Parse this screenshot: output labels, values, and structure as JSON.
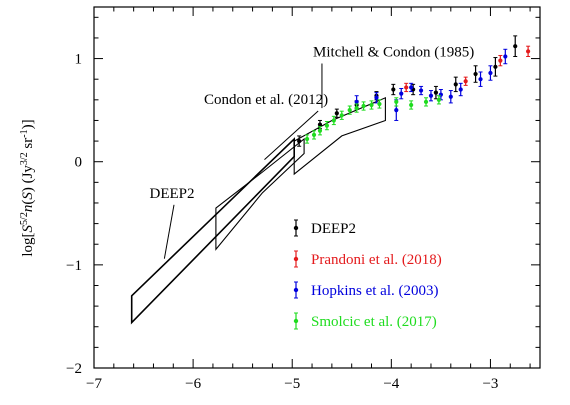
{
  "chart_data": {
    "type": "scatter",
    "title": "",
    "xlabel": "",
    "ylabel": "log[S^{5/2}n(S) (Jy^{3/2} sr^{-1})]",
    "xlim": [
      -7,
      -2.5
    ],
    "ylim": [
      -2,
      1.5
    ],
    "xticks": [
      -7,
      -6,
      -5,
      -4,
      -3
    ],
    "yticks": [
      -2,
      -1,
      0,
      1
    ],
    "xtick_labels": [
      "−7",
      "−6",
      "−5",
      "−4",
      "−3"
    ],
    "ytick_labels": [
      "−2",
      "−1",
      "0",
      "1"
    ],
    "grid": false,
    "legend_position": "lower-right",
    "series": [
      {
        "name": "DEEP2",
        "color": "#000000",
        "points": [
          {
            "x": -4.93,
            "y": 0.2,
            "err": 0.05
          },
          {
            "x": -4.72,
            "y": 0.36,
            "err": 0.04
          },
          {
            "x": -4.55,
            "y": 0.47,
            "err": 0.04
          },
          {
            "x": -4.35,
            "y": 0.55,
            "err": 0.04
          },
          {
            "x": -4.15,
            "y": 0.64,
            "err": 0.04
          },
          {
            "x": -3.98,
            "y": 0.7,
            "err": 0.05
          },
          {
            "x": -3.78,
            "y": 0.7,
            "err": 0.05
          },
          {
            "x": -3.55,
            "y": 0.67,
            "err": 0.06
          },
          {
            "x": -3.35,
            "y": 0.75,
            "err": 0.07
          },
          {
            "x": -3.15,
            "y": 0.85,
            "err": 0.08
          },
          {
            "x": -2.95,
            "y": 0.92,
            "err": 0.09
          },
          {
            "x": -2.75,
            "y": 1.12,
            "err": 0.1
          }
        ]
      },
      {
        "name": "Prandoni et al. (2018)",
        "color": "#e41a1c",
        "points": [
          {
            "x": -3.85,
            "y": 0.72,
            "err": 0.04
          },
          {
            "x": -3.25,
            "y": 0.78,
            "err": 0.04
          },
          {
            "x": -2.9,
            "y": 0.98,
            "err": 0.05
          },
          {
            "x": -2.62,
            "y": 1.07,
            "err": 0.05
          }
        ]
      },
      {
        "name": "Hopkins et al. (2003)",
        "color": "#0000dd",
        "points": [
          {
            "x": -4.35,
            "y": 0.58,
            "err": 0.06
          },
          {
            "x": -4.15,
            "y": 0.62,
            "err": 0.05
          },
          {
            "x": -3.95,
            "y": 0.5,
            "err": 0.1
          },
          {
            "x": -3.9,
            "y": 0.66,
            "err": 0.05
          },
          {
            "x": -3.8,
            "y": 0.72,
            "err": 0.04
          },
          {
            "x": -3.7,
            "y": 0.69,
            "err": 0.04
          },
          {
            "x": -3.6,
            "y": 0.64,
            "err": 0.05
          },
          {
            "x": -3.5,
            "y": 0.65,
            "err": 0.05
          },
          {
            "x": -3.4,
            "y": 0.63,
            "err": 0.06
          },
          {
            "x": -3.3,
            "y": 0.7,
            "err": 0.06
          },
          {
            "x": -3.1,
            "y": 0.8,
            "err": 0.07
          },
          {
            "x": -3.0,
            "y": 0.86,
            "err": 0.07
          },
          {
            "x": -2.85,
            "y": 1.02,
            "err": 0.07
          }
        ]
      },
      {
        "name": "Smolcic et al. (2017)",
        "color": "#1fdc1f",
        "points": [
          {
            "x": -4.85,
            "y": 0.22,
            "err": 0.04
          },
          {
            "x": -4.78,
            "y": 0.26,
            "err": 0.04
          },
          {
            "x": -4.72,
            "y": 0.3,
            "err": 0.04
          },
          {
            "x": -4.65,
            "y": 0.35,
            "err": 0.04
          },
          {
            "x": -4.58,
            "y": 0.4,
            "err": 0.04
          },
          {
            "x": -4.5,
            "y": 0.45,
            "err": 0.04
          },
          {
            "x": -4.42,
            "y": 0.5,
            "err": 0.04
          },
          {
            "x": -4.35,
            "y": 0.52,
            "err": 0.04
          },
          {
            "x": -4.28,
            "y": 0.54,
            "err": 0.04
          },
          {
            "x": -4.2,
            "y": 0.55,
            "err": 0.04
          },
          {
            "x": -4.12,
            "y": 0.56,
            "err": 0.04
          },
          {
            "x": -3.95,
            "y": 0.58,
            "err": 0.04
          },
          {
            "x": -3.8,
            "y": 0.55,
            "err": 0.04
          },
          {
            "x": -3.65,
            "y": 0.58,
            "err": 0.04
          },
          {
            "x": -3.52,
            "y": 0.6,
            "err": 0.04
          }
        ]
      }
    ],
    "regions": [
      {
        "name": "DEEP2",
        "color": "#000000",
        "stroke_px": 1.6,
        "polygon": [
          [
            -6.62,
            -1.3
          ],
          [
            -4.98,
            0.22
          ],
          [
            -4.98,
            0.05
          ],
          [
            -6.62,
            -1.56
          ]
        ]
      },
      {
        "name": "Condon et al. (2012)",
        "color": "#000000",
        "stroke_px": 1.1,
        "polygon": [
          [
            -5.77,
            -0.45
          ],
          [
            -5.3,
            -0.1
          ],
          [
            -4.88,
            0.22
          ],
          [
            -4.88,
            0.08
          ],
          [
            -5.3,
            -0.3
          ],
          [
            -5.77,
            -0.85
          ]
        ]
      },
      {
        "name": "Mitchell & Condon (1985)",
        "color": "#000000",
        "stroke_px": 1.1,
        "polygon": [
          [
            -4.98,
            0.2
          ],
          [
            -4.6,
            0.4
          ],
          [
            -4.06,
            0.62
          ],
          [
            -4.06,
            0.4
          ],
          [
            -4.5,
            0.25
          ],
          [
            -4.98,
            -0.12
          ]
        ]
      }
    ],
    "annotations": [
      {
        "text": "Mitchell & Condon (1985)",
        "x": -4.79,
        "y": 1.02,
        "arrow_to": [
          -4.7,
          0.52
        ]
      },
      {
        "text": "Condon et al. (2012)",
        "x": -5.89,
        "y": 0.56,
        "arrow_to": [
          -5.28,
          0.02
        ]
      },
      {
        "text": "DEEP2",
        "x": -6.44,
        "y": -0.35,
        "arrow_to": [
          -6.29,
          -0.94
        ]
      }
    ]
  }
}
